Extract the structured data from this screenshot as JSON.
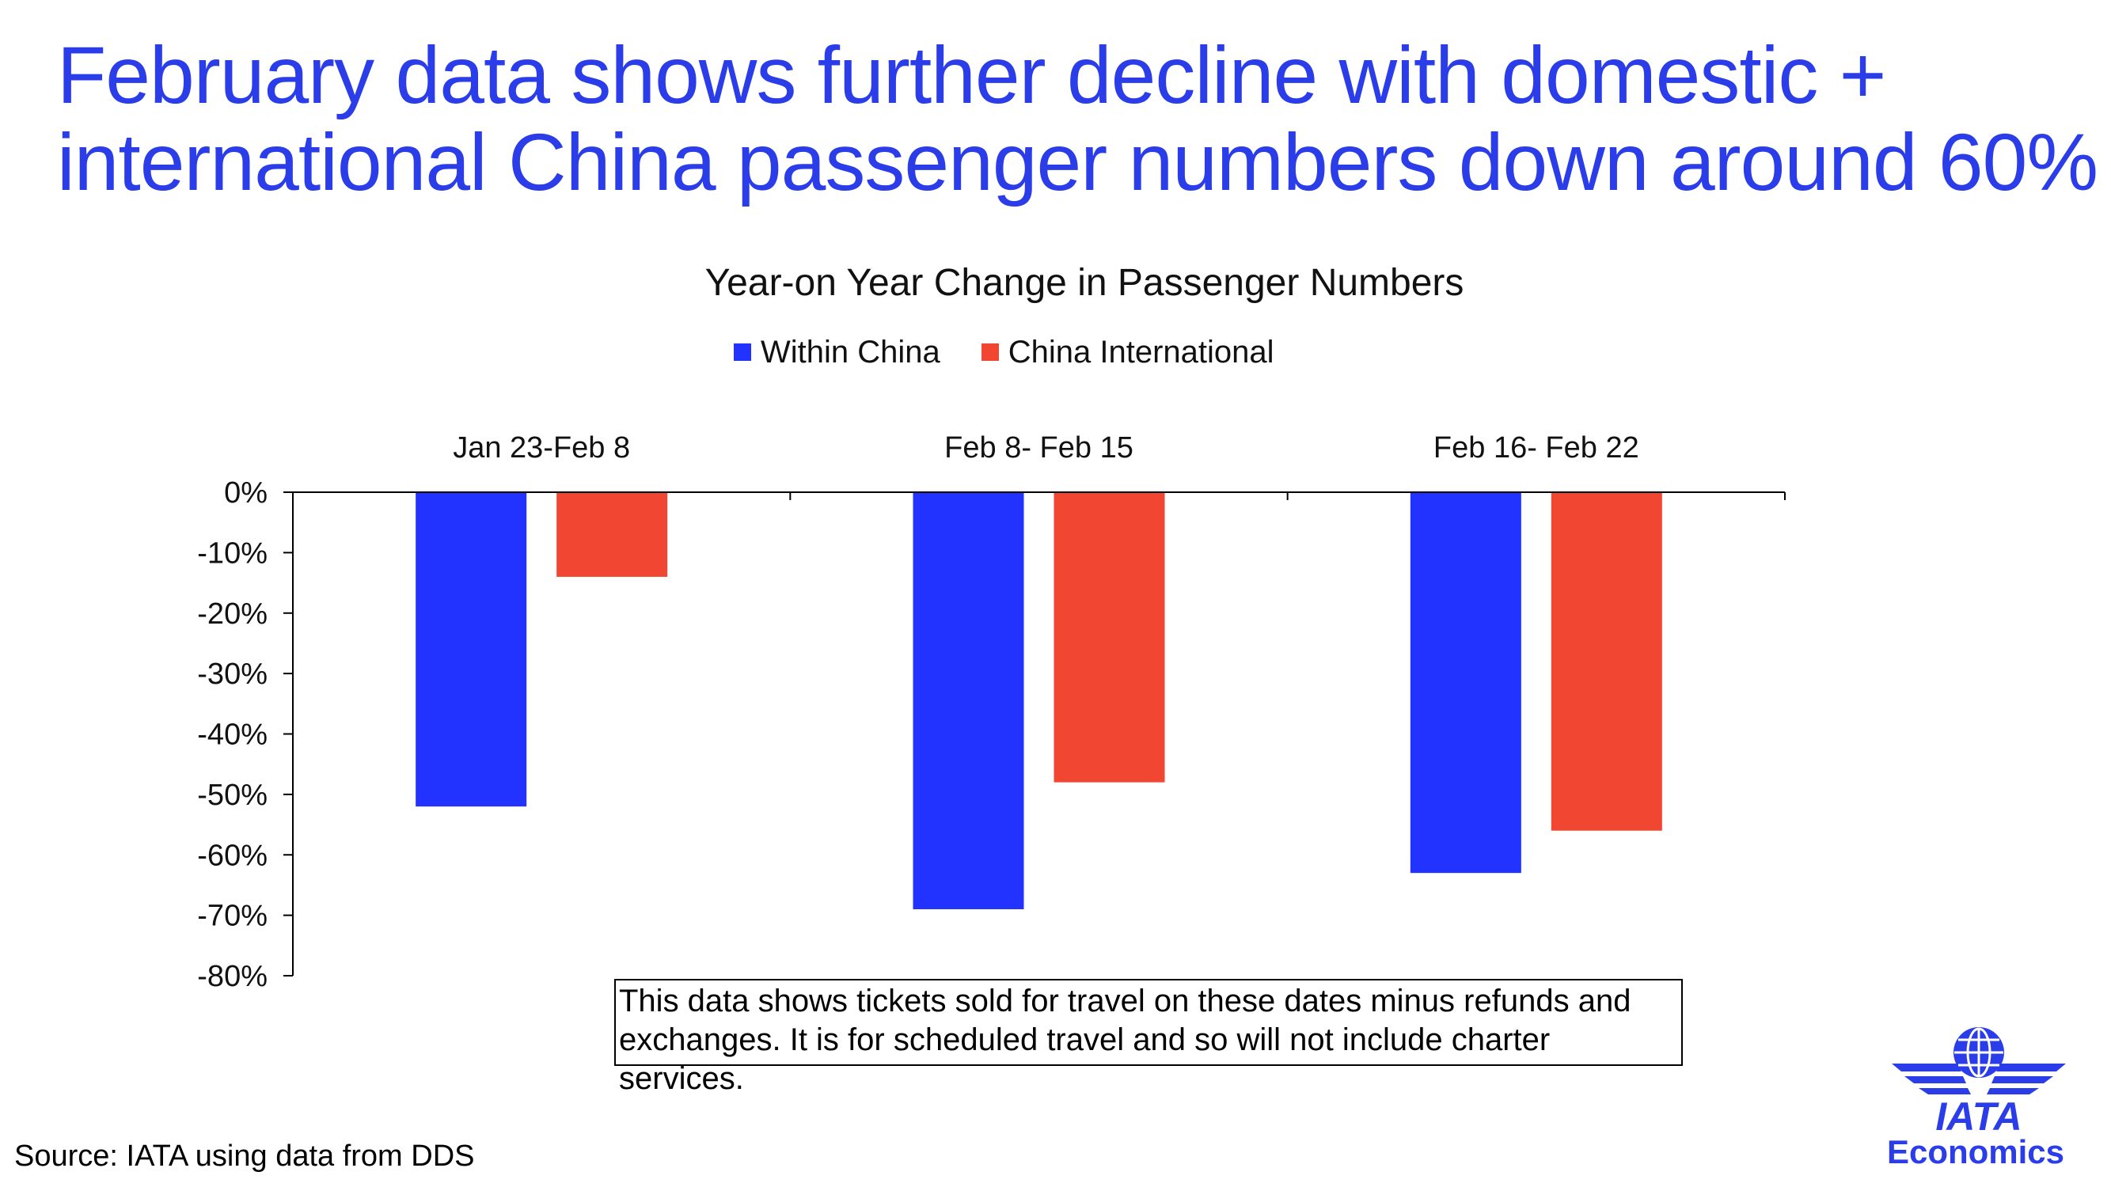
{
  "headline": {
    "line1": "February data shows further decline with domestic +",
    "line2": "international China passenger numbers down around 60%"
  },
  "note": {
    "line1": "This data shows tickets sold for travel on these dates minus refunds and",
    "line2": "exchanges. It is for scheduled travel and so will not include charter services."
  },
  "source": "Source: IATA using data from DDS",
  "logo": {
    "wordmark": "IATA",
    "subtitle": "Economics",
    "icon": "globe-wings-icon"
  },
  "colors": {
    "accent": "#2a3de8",
    "within_china": "#2233ff",
    "china_international": "#f04632"
  },
  "chart_data": {
    "type": "bar",
    "title": "Year-on Year Change in Passenger Numbers",
    "categories": [
      "Jan 23-Feb 8",
      "Feb 8- Feb 15",
      "Feb 16- Feb 22"
    ],
    "series": [
      {
        "name": "Within China",
        "values": [
          -52,
          -69,
          -63
        ]
      },
      {
        "name": "China International",
        "values": [
          -14,
          -48,
          -56
        ]
      }
    ],
    "ylim": [
      -80,
      0
    ],
    "yticks": [
      0,
      -10,
      -20,
      -30,
      -40,
      -50,
      -60,
      -70,
      -80
    ],
    "ytick_labels": [
      "0%",
      "-10%",
      "-20%",
      "-30%",
      "-40%",
      "-50%",
      "-60%",
      "-70%",
      "-80%"
    ],
    "xaxis_position": "top",
    "legend_position": "top-center",
    "grid": false,
    "xlabel": "",
    "ylabel": ""
  }
}
